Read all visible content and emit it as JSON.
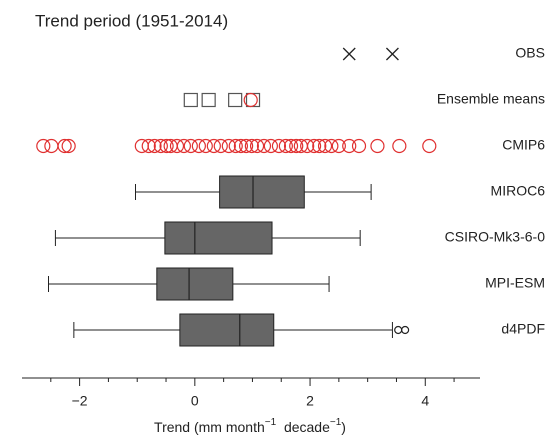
{
  "chart_data": {
    "type": "box",
    "title": "Trend period (1951-2014)",
    "x_label": [
      "Trend (mm month",
      "−1",
      "  decade",
      "−1",
      ")"
    ],
    "xlim": [
      -3,
      4.95
    ],
    "xticks": [
      {
        "value": -2,
        "label": "−2"
      },
      0,
      2,
      4
    ],
    "xminorticks": [
      -2.5,
      -1.5,
      -1,
      -0.5,
      0.5,
      1,
      1.5,
      2.5,
      3,
      3.5,
      4.5
    ],
    "series": [
      {
        "name": "OBS",
        "kind": "points",
        "marker": "x",
        "color": "#222222",
        "values": [
          2.68,
          3.43
        ]
      },
      {
        "name": "Ensemble means",
        "kind": "points",
        "marker": "square",
        "color": "#555555",
        "values": [
          -0.07,
          0.24,
          0.7,
          1.01
        ],
        "overlay": {
          "marker": "circle",
          "color": "#e03030",
          "values": [
            0.97
          ]
        }
      },
      {
        "name": "CMIP6",
        "kind": "points",
        "marker": "circle",
        "color": "#e03030",
        "values": [
          -2.63,
          -2.49,
          -2.26,
          -2.19,
          -0.92,
          -0.8,
          -0.7,
          -0.59,
          -0.49,
          -0.42,
          -0.31,
          -0.19,
          -0.07,
          0.07,
          0.19,
          0.33,
          0.45,
          0.59,
          0.71,
          0.8,
          0.89,
          0.99,
          1.08,
          1.2,
          1.32,
          1.46,
          1.58,
          1.67,
          1.76,
          1.84,
          1.95,
          2.07,
          2.16,
          2.26,
          2.37,
          2.5,
          2.68,
          2.85,
          3.17,
          3.55,
          4.07
        ]
      },
      {
        "name": "MIROC6",
        "kind": "box",
        "color": "#666666",
        "box": {
          "whislo": -1.03,
          "q1": 0.43,
          "med": 1.01,
          "q3": 1.9,
          "whishi": 3.06,
          "fliers": []
        }
      },
      {
        "name": "CSIRO-Mk3-6-0",
        "kind": "box",
        "color": "#666666",
        "box": {
          "whislo": -2.42,
          "q1": -0.52,
          "med": 0.0,
          "q3": 1.34,
          "whishi": 2.87,
          "fliers": []
        }
      },
      {
        "name": "MPI-ESM",
        "kind": "box",
        "color": "#666666",
        "box": {
          "whislo": -2.54,
          "q1": -0.66,
          "med": -0.1,
          "q3": 0.66,
          "whishi": 2.33,
          "fliers": []
        }
      },
      {
        "name": "d4PDF",
        "kind": "box",
        "color": "#666666",
        "box": {
          "whislo": -2.1,
          "q1": -0.26,
          "med": 0.78,
          "q3": 1.37,
          "whishi": 3.43,
          "fliers": [
            3.53,
            3.65
          ]
        }
      }
    ]
  }
}
